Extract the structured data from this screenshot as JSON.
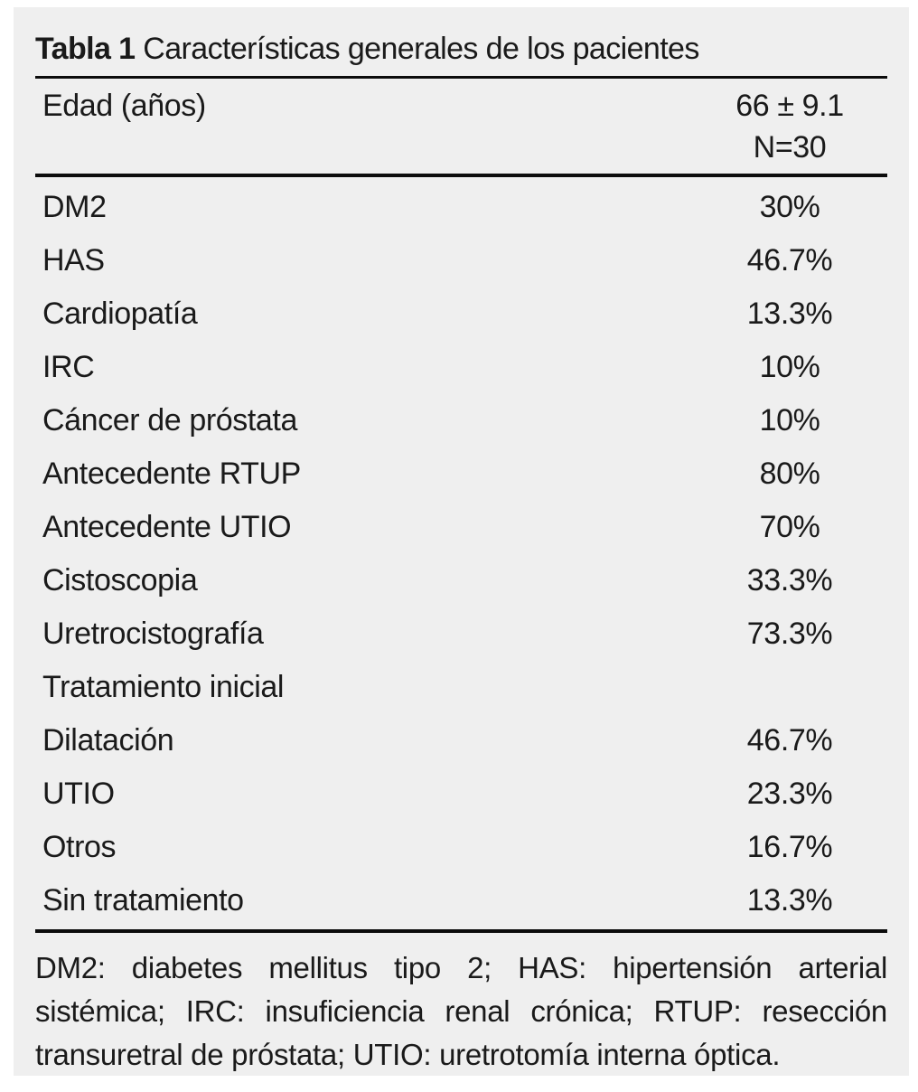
{
  "title": {
    "label": "Tabla 1",
    "text": "Características generales de los pacientes"
  },
  "header": {
    "label": "Edad (años)",
    "value_line1": "66 ± 9.1",
    "value_line2": "N=30"
  },
  "table": {
    "rows": [
      {
        "label": "DM2",
        "value": "30%"
      },
      {
        "label": "HAS",
        "value": "46.7%"
      },
      {
        "label": "Cardiopatía",
        "value": "13.3%"
      },
      {
        "label": "IRC",
        "value": "10%"
      },
      {
        "label": "Cáncer de próstata",
        "value": "10%"
      },
      {
        "label": "Antecedente RTUP",
        "value": "80%"
      },
      {
        "label": "Antecedente UTIO",
        "value": "70%"
      },
      {
        "label": "Cistoscopia",
        "value": "33.3%"
      },
      {
        "label": "Uretrocistografía",
        "value": "73.3%"
      },
      {
        "label": "Tratamiento inicial",
        "value": ""
      },
      {
        "label": "Dilatación",
        "value": "46.7%"
      },
      {
        "label": "UTIO",
        "value": "23.3%"
      },
      {
        "label": "Otros",
        "value": "16.7%"
      },
      {
        "label": "Sin tratamiento",
        "value": "13.3%"
      }
    ]
  },
  "footnote": {
    "text": "DM2: diabetes mellitus tipo 2; HAS: hipertensión arterial sistémica; IRC: insuficiencia renal crónica; RTUP: resección transuretral de próstata; UTIO: uretrotomía interna óptica."
  },
  "colors": {
    "page_bg": "#ffffff",
    "panel_bg": "#efefef",
    "text": "#1a1a1a",
    "rule": "#0c0c0c"
  }
}
